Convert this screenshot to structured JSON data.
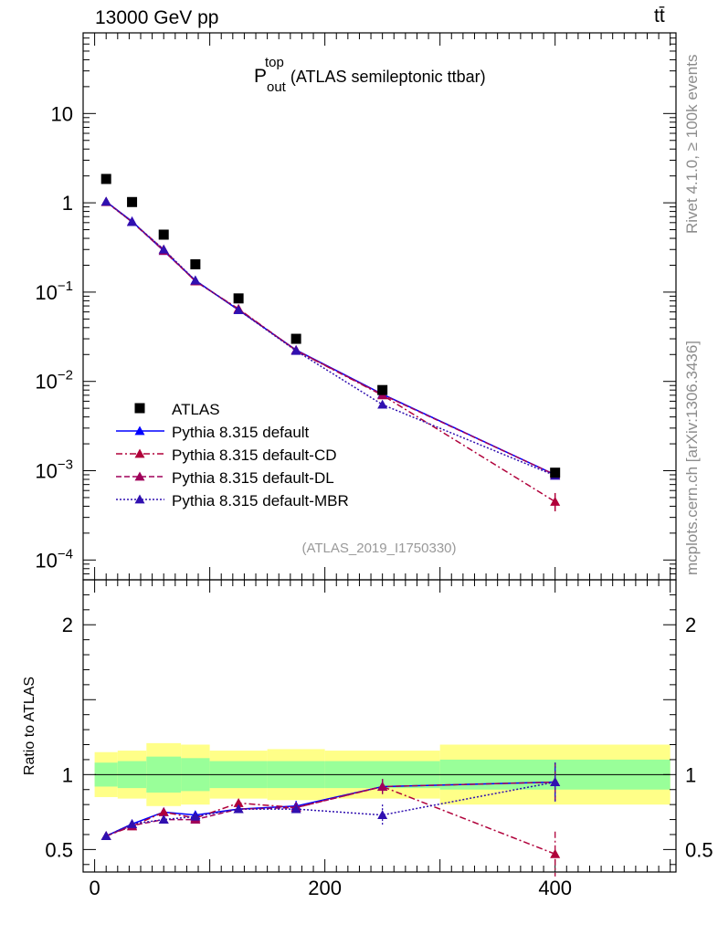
{
  "header": {
    "energy_label": "13000 GeV pp",
    "process_label": "tt̄"
  },
  "side_labels": {
    "rivet": "Rivet 4.1.0, ≥ 100k events",
    "mcplots": "mcplots.cern.ch [arXiv:1306.3436]"
  },
  "chart_data": {
    "type": "scatter",
    "title": {
      "base": "P",
      "sub": "out",
      "sup": "top",
      "rest": " (ATLAS semileptonic ttbar)"
    },
    "watermark": "(ATLAS_2019_I1750330)",
    "xlim": [
      -10,
      505
    ],
    "main": {
      "yscale": "log",
      "ylim": [
        6e-05,
        80
      ],
      "ytick_labels": [
        {
          "value": 10,
          "text": "10"
        },
        {
          "value": 1,
          "text": "1"
        },
        {
          "value": 0.1,
          "base": "10",
          "exp": "−1"
        },
        {
          "value": 0.01,
          "base": "10",
          "exp": "−2"
        },
        {
          "value": 0.001,
          "base": "10",
          "exp": "−3"
        },
        {
          "value": 0.0001,
          "base": "10",
          "exp": "−4"
        }
      ]
    },
    "ratio": {
      "ylabel": "Ratio to ATLAS",
      "ylim": [
        0.35,
        2.3
      ],
      "ytick_labels": [
        {
          "value": 2,
          "text": "2"
        },
        {
          "value": 1,
          "text": "1"
        },
        {
          "value": 0.5,
          "text": "0.5"
        }
      ],
      "xtick_labels": [
        {
          "value": 0,
          "text": "0"
        },
        {
          "value": 200,
          "text": "200"
        },
        {
          "value": 400,
          "text": "400"
        }
      ],
      "band_edges": [
        0,
        20,
        45,
        75,
        100,
        150,
        200,
        300,
        500
      ],
      "band_yellow": [
        [
          0.85,
          1.15
        ],
        [
          0.84,
          1.16
        ],
        [
          0.79,
          1.21
        ],
        [
          0.8,
          1.2
        ],
        [
          0.84,
          1.16
        ],
        [
          0.83,
          1.17
        ],
        [
          0.84,
          1.16
        ],
        [
          0.8,
          1.2
        ]
      ],
      "band_green": [
        [
          0.92,
          1.08
        ],
        [
          0.91,
          1.09
        ],
        [
          0.88,
          1.12
        ],
        [
          0.89,
          1.11
        ],
        [
          0.91,
          1.09
        ],
        [
          0.91,
          1.09
        ],
        [
          0.91,
          1.09
        ],
        [
          0.9,
          1.1
        ]
      ]
    },
    "x": [
      10,
      32.5,
      60,
      87.5,
      125,
      175,
      250,
      400
    ],
    "data": {
      "name": "ATLAS",
      "values": [
        1.85,
        1.02,
        0.44,
        0.205,
        0.085,
        0.03,
        0.008,
        0.00095
      ]
    },
    "series": [
      {
        "name": "Pythia 8.315 default",
        "color": "#0000ff",
        "dash": "",
        "values": [
          1.03,
          0.62,
          0.29,
          0.135,
          0.063,
          0.0225,
          0.0072,
          0.0009
        ],
        "ratio": [
          0.59,
          0.67,
          0.75,
          0.73,
          0.77,
          0.79,
          0.92,
          0.95
        ],
        "ratio_err": [
          0.01,
          0.015,
          0.02,
          0.025,
          0.025,
          0.035,
          0.05,
          0.13
        ]
      },
      {
        "name": "Pythia 8.315 default-CD",
        "color": "#b0003a",
        "dash": "7,3,2,3",
        "values": [
          1.02,
          0.61,
          0.3,
          0.132,
          0.065,
          0.0222,
          0.007,
          0.00045
        ],
        "ratio": [
          0.59,
          0.655,
          0.75,
          0.71,
          0.81,
          0.78,
          0.92,
          0.47
        ],
        "ratio_err": [
          0.01,
          0.015,
          0.02,
          0.025,
          0.025,
          0.035,
          0.05,
          0.15
        ]
      },
      {
        "name": "Pythia 8.315 default-DL",
        "color": "#a0005a",
        "dash": "6,3",
        "values": [
          1.03,
          0.61,
          0.29,
          0.133,
          0.064,
          0.0223,
          0.0071,
          0.0009
        ],
        "ratio": [
          0.59,
          0.66,
          0.7,
          0.7,
          0.77,
          0.78,
          0.92,
          0.95
        ],
        "ratio_err": [
          0.01,
          0.015,
          0.02,
          0.025,
          0.025,
          0.035,
          0.05,
          0.13
        ]
      },
      {
        "name": "Pythia 8.315 default-MBR",
        "color": "#3010b0",
        "dash": "2,2",
        "values": [
          1.03,
          0.61,
          0.3,
          0.135,
          0.063,
          0.022,
          0.0055,
          0.00088
        ],
        "ratio": [
          0.59,
          0.67,
          0.7,
          0.72,
          0.77,
          0.77,
          0.73,
          0.95
        ],
        "ratio_err": [
          0.01,
          0.015,
          0.02,
          0.025,
          0.025,
          0.035,
          0.07,
          0.13
        ]
      }
    ]
  }
}
